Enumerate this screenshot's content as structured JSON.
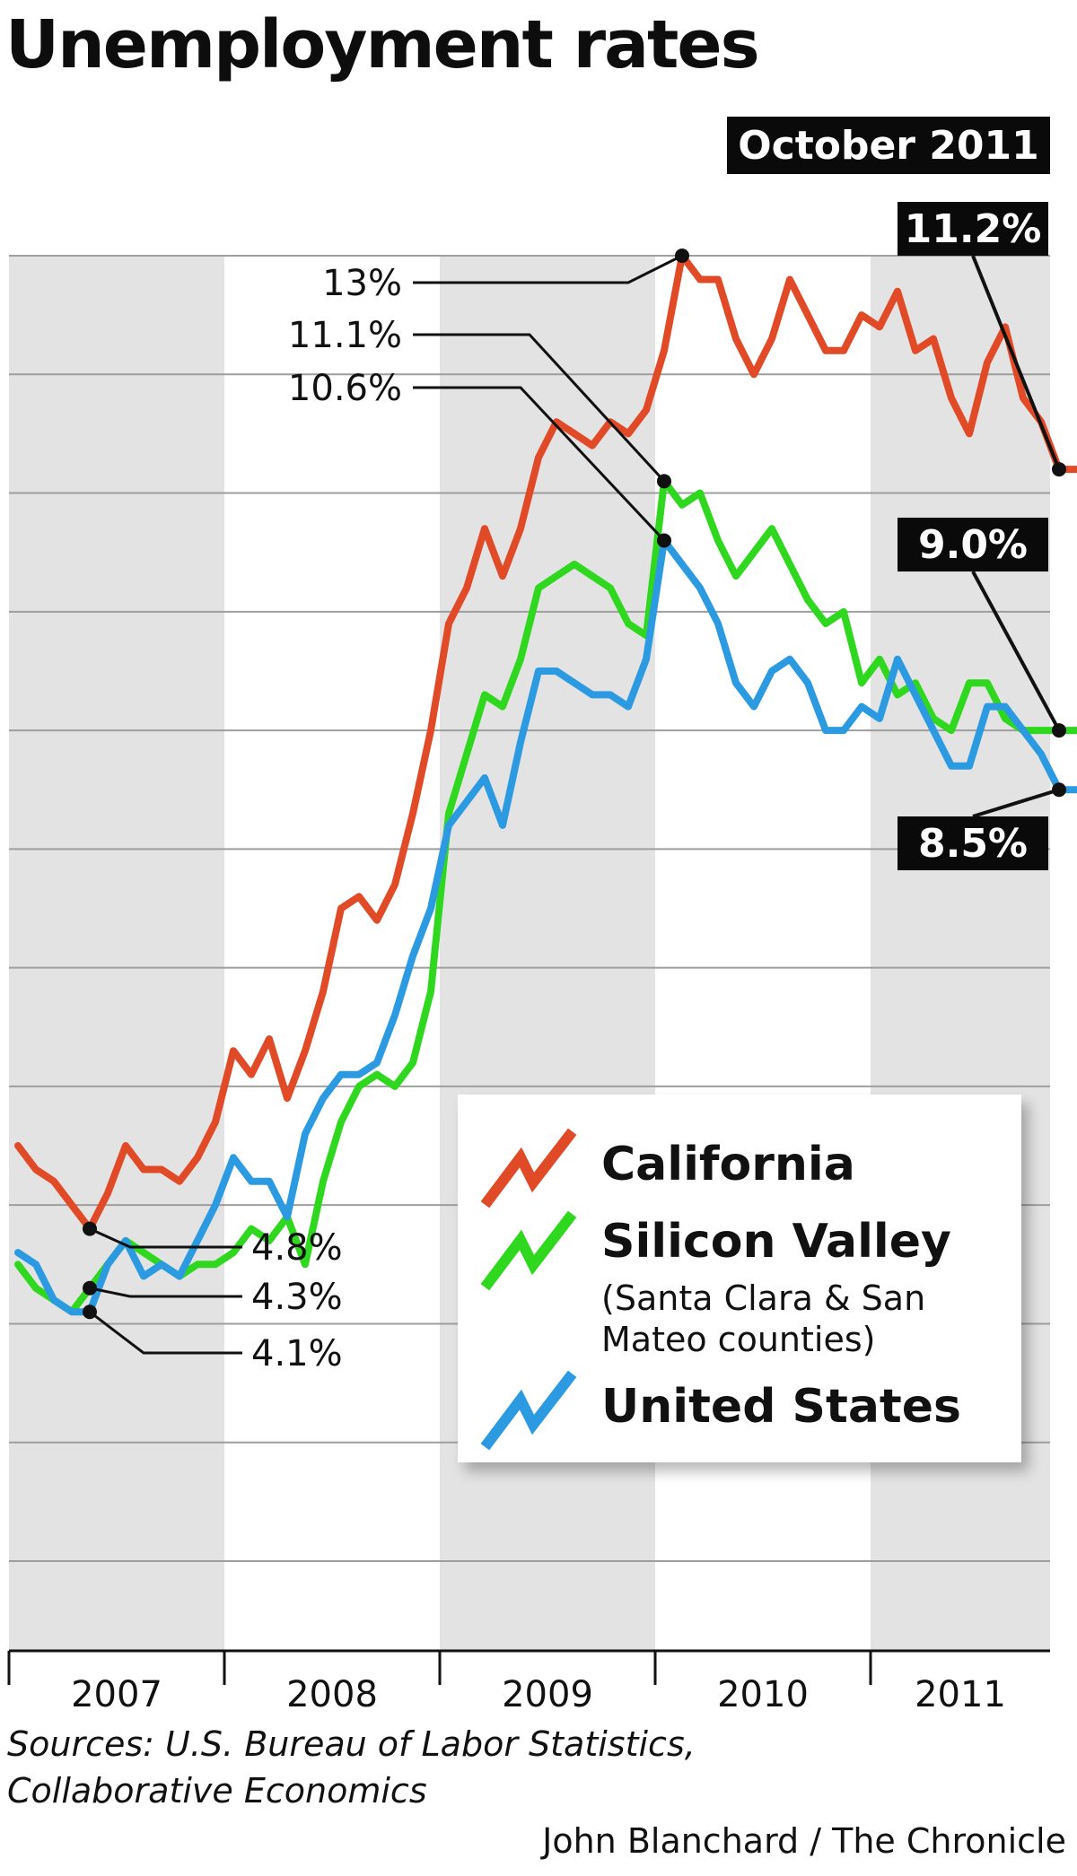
{
  "title": "Unemployment rates",
  "sources": "Sources: U.S. Bureau of Labor Statistics, Collaborative Economics",
  "credit": "John Blanchard / The Chronicle",
  "chart_data": {
    "type": "line",
    "title": "Unemployment rates",
    "xlabel": "",
    "ylabel": "",
    "x_unit": "months",
    "x_start": "2007-01",
    "x_end": "2011-10",
    "ylim": [
      2,
      13
    ],
    "grid": "horizontal",
    "year_labels": [
      "2007",
      "2008",
      "2009",
      "2010",
      "2011"
    ],
    "latest_label": "October 2011",
    "series": [
      {
        "name": "California",
        "color": "#e04a26",
        "values": [
          5.5,
          5.3,
          5.2,
          5.0,
          4.8,
          5.1,
          5.5,
          5.3,
          5.3,
          5.2,
          5.4,
          5.7,
          6.3,
          6.1,
          6.4,
          5.9,
          6.3,
          6.8,
          7.5,
          7.6,
          7.4,
          7.7,
          8.3,
          9.0,
          9.9,
          10.2,
          10.7,
          10.3,
          10.7,
          11.3,
          11.6,
          11.5,
          11.4,
          11.6,
          11.5,
          11.7,
          12.2,
          13.0,
          12.8,
          12.8,
          12.3,
          12.0,
          12.3,
          12.8,
          12.5,
          12.2,
          12.2,
          12.5,
          12.4,
          12.7,
          12.2,
          12.3,
          11.8,
          11.5,
          12.1,
          12.4,
          11.8,
          11.6,
          11.2,
          11.2
        ],
        "callouts": [
          {
            "label": "4.8%",
            "index": 4
          },
          {
            "label": "13%",
            "index": 37
          },
          {
            "label": "11.2%",
            "index": 58
          }
        ]
      },
      {
        "name": "Silicon Valley",
        "subtitle": "(Santa Clara & San Mateo counties)",
        "color": "#2fd81e",
        "values": [
          4.5,
          4.3,
          4.2,
          4.1,
          4.3,
          4.5,
          4.7,
          4.6,
          4.5,
          4.4,
          4.5,
          4.5,
          4.6,
          4.8,
          4.7,
          4.9,
          4.5,
          5.2,
          5.7,
          6.0,
          6.1,
          6.0,
          6.2,
          6.8,
          8.3,
          8.8,
          9.3,
          9.2,
          9.6,
          10.2,
          10.3,
          10.4,
          10.3,
          10.2,
          9.9,
          9.8,
          11.1,
          10.9,
          11.0,
          10.6,
          10.3,
          10.5,
          10.7,
          10.4,
          10.1,
          9.9,
          10.0,
          9.4,
          9.6,
          9.3,
          9.4,
          9.1,
          9.0,
          9.4,
          9.4,
          9.1,
          9.0,
          9.0,
          9.0,
          9.0
        ],
        "callouts": [
          {
            "label": "4.3%",
            "index": 4
          },
          {
            "label": "11.1%",
            "index": 36
          },
          {
            "label": "9.0%",
            "index": 58
          }
        ]
      },
      {
        "name": "United States",
        "color": "#2b9ae0",
        "values": [
          4.6,
          4.5,
          4.2,
          4.1,
          4.1,
          4.5,
          4.7,
          4.4,
          4.5,
          4.4,
          4.7,
          5.0,
          5.4,
          5.2,
          5.2,
          4.9,
          5.6,
          5.9,
          6.1,
          6.1,
          6.2,
          6.6,
          7.1,
          7.5,
          8.2,
          8.4,
          8.6,
          8.2,
          8.9,
          9.5,
          9.5,
          9.4,
          9.3,
          9.3,
          9.2,
          9.6,
          10.6,
          10.4,
          10.2,
          9.9,
          9.4,
          9.2,
          9.5,
          9.6,
          9.4,
          9.0,
          9.0,
          9.2,
          9.1,
          9.6,
          9.3,
          9.0,
          8.7,
          8.7,
          9.2,
          9.2,
          9.0,
          8.8,
          8.5,
          8.5
        ],
        "callouts": [
          {
            "label": "4.1%",
            "index": 4
          },
          {
            "label": "10.6%",
            "index": 36
          },
          {
            "label": "8.5%",
            "index": 58
          }
        ]
      }
    ]
  }
}
